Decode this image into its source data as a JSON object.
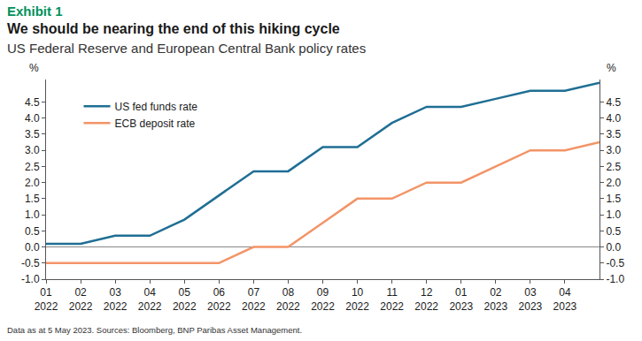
{
  "chart_data": {
    "type": "line",
    "title": "We should be nearing the end of this hiking cycle",
    "subtitle": "US Federal Reserve and European Central Bank policy rates",
    "annotations": [
      "Exhibit 1",
      "Data as at 5 May 2023.  Sources: Bloomberg, BNP Paribas Asset Management."
    ],
    "ylabel": "%",
    "categories": [
      "01\n2022",
      "02\n2022",
      "03\n2022",
      "04\n2022",
      "05\n2022",
      "06\n2022",
      "07\n2022",
      "08\n2022",
      "09\n2022",
      "10\n2022",
      "11\n2022",
      "12\n2022",
      "01\n2023",
      "02\n2023",
      "03\n2023",
      "04\n2023",
      null
    ],
    "series": [
      {
        "name": "US fed funds rate",
        "color": "#1f6e94",
        "values": [
          0.1,
          0.1,
          0.35,
          0.35,
          0.85,
          1.6,
          2.35,
          2.35,
          3.1,
          3.1,
          3.85,
          4.35,
          4.35,
          4.6,
          4.85,
          4.85,
          5.1
        ]
      },
      {
        "name": "ECB deposit rate",
        "color": "#f39467",
        "values": [
          -0.5,
          -0.5,
          -0.5,
          -0.5,
          -0.5,
          -0.5,
          0.0,
          0.0,
          0.75,
          1.5,
          1.5,
          2.0,
          2.0,
          2.5,
          3.0,
          3.0,
          3.25
        ]
      }
    ],
    "ylim": [
      -1.0,
      5.2
    ],
    "yticks": [
      {
        "value": -1.0,
        "label": "-1.0"
      },
      -0.5,
      {
        "value": 0.0,
        "label": "0.0"
      },
      0.5,
      {
        "value": 1.0,
        "label": "1.0"
      },
      1.5,
      {
        "value": 2.0,
        "label": "2.0"
      },
      2.5,
      {
        "value": 3.0,
        "label": "3.0"
      },
      3.5,
      {
        "value": 4.0,
        "label": "4.0"
      },
      4.5
    ],
    "grid": false,
    "legend": "upper left"
  }
}
